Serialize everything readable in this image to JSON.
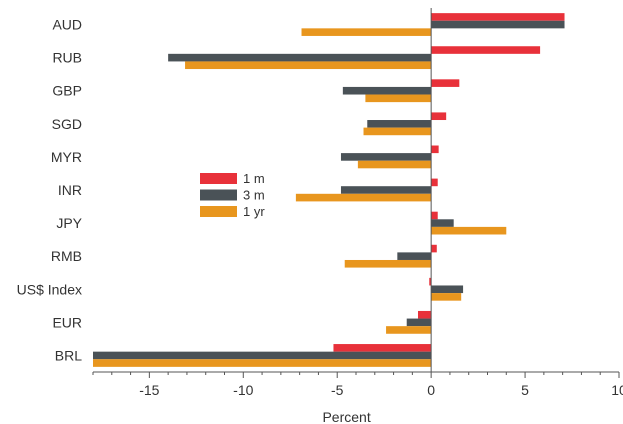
{
  "chart_data": {
    "type": "bar",
    "orientation": "horizontal",
    "title": "",
    "xlabel": "Percent",
    "ylabel": "",
    "xlim": [
      -18,
      10
    ],
    "x_ticks": [
      -15,
      -10,
      -5,
      0,
      5,
      10
    ],
    "grid": false,
    "legend_position": "center-left",
    "categories": [
      "AUD",
      "RUB",
      "GBP",
      "SGD",
      "MYR",
      "INR",
      "JPY",
      "RMB",
      "US$ Index",
      "EUR",
      "BRL"
    ],
    "series": [
      {
        "name": "1 m",
        "color": "#e8313a",
        "values": [
          7.1,
          5.8,
          1.5,
          0.8,
          0.4,
          0.35,
          0.35,
          0.3,
          -0.1,
          -0.7,
          -5.2
        ]
      },
      {
        "name": "3 m",
        "color": "#4a5257",
        "values": [
          7.1,
          -14.0,
          -4.7,
          -3.4,
          -4.8,
          -4.8,
          1.2,
          -1.8,
          1.7,
          -1.3,
          -18.0
        ]
      },
      {
        "name": "1 yr",
        "color": "#e8961e",
        "values": [
          -6.9,
          -13.1,
          -3.5,
          -3.6,
          -3.9,
          -7.2,
          4.0,
          -4.6,
          1.6,
          -2.4,
          -18.0
        ]
      }
    ]
  }
}
